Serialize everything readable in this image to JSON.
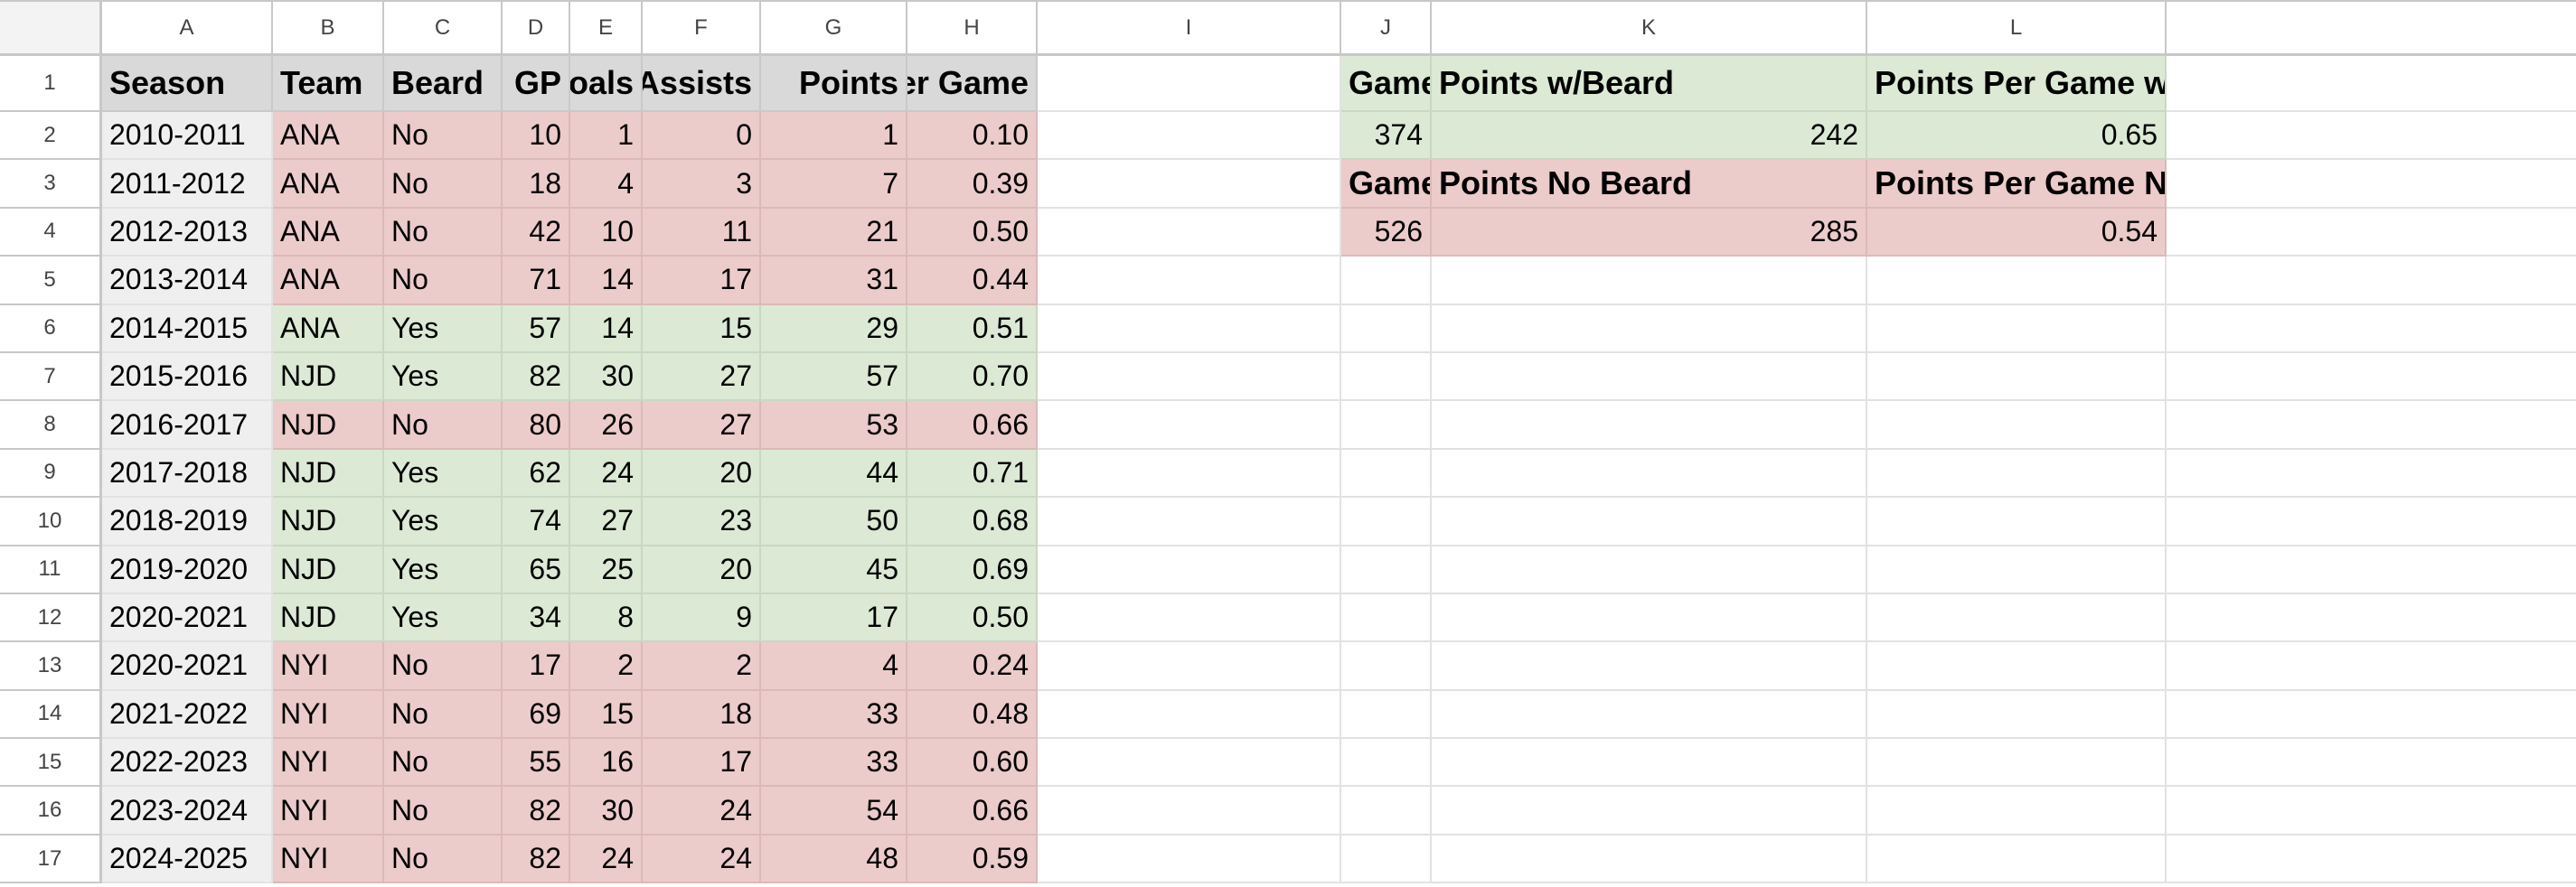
{
  "columns": [
    "A",
    "B",
    "C",
    "D",
    "E",
    "F",
    "G",
    "H",
    "I",
    "J",
    "K",
    "L"
  ],
  "headers": [
    "Season",
    "Team",
    "Beard",
    "GP",
    "Goals",
    "Assists",
    "Points",
    "Points per Game"
  ],
  "rows": [
    [
      "2010-2011",
      "ANA",
      "No",
      "10",
      "1",
      "0",
      "1",
      "0.10"
    ],
    [
      "2011-2012",
      "ANA",
      "No",
      "18",
      "4",
      "3",
      "7",
      "0.39"
    ],
    [
      "2012-2013",
      "ANA",
      "No",
      "42",
      "10",
      "11",
      "21",
      "0.50"
    ],
    [
      "2013-2014",
      "ANA",
      "No",
      "71",
      "14",
      "17",
      "31",
      "0.44"
    ],
    [
      "2014-2015",
      "ANA",
      "Yes",
      "57",
      "14",
      "15",
      "29",
      "0.51"
    ],
    [
      "2015-2016",
      "NJD",
      "Yes",
      "82",
      "30",
      "27",
      "57",
      "0.70"
    ],
    [
      "2016-2017",
      "NJD",
      "No",
      "80",
      "26",
      "27",
      "53",
      "0.66"
    ],
    [
      "2017-2018",
      "NJD",
      "Yes",
      "62",
      "24",
      "20",
      "44",
      "0.71"
    ],
    [
      "2018-2019",
      "NJD",
      "Yes",
      "74",
      "27",
      "23",
      "50",
      "0.68"
    ],
    [
      "2019-2020",
      "NJD",
      "Yes",
      "65",
      "25",
      "20",
      "45",
      "0.69"
    ],
    [
      "2020-2021",
      "NJD",
      "Yes",
      "34",
      "8",
      "9",
      "17",
      "0.50"
    ],
    [
      "2020-2021",
      "NYI",
      "No",
      "17",
      "2",
      "2",
      "4",
      "0.24"
    ],
    [
      "2021-2022",
      "NYI",
      "No",
      "69",
      "15",
      "18",
      "33",
      "0.48"
    ],
    [
      "2022-2023",
      "NYI",
      "No",
      "55",
      "16",
      "17",
      "33",
      "0.60"
    ],
    [
      "2023-2024",
      "NYI",
      "No",
      "82",
      "30",
      "24",
      "54",
      "0.66"
    ],
    [
      "2024-2025",
      "NYI",
      "No",
      "82",
      "24",
      "24",
      "48",
      "0.59"
    ]
  ],
  "summary": {
    "beard_labels": [
      "Games Played w/Beard",
      "Points w/Beard",
      "Points Per Game w/Beard"
    ],
    "beard_values": [
      "374",
      "242",
      "0.65"
    ],
    "nobeard_labels": [
      "Games Played No Beard",
      "Points No Beard",
      "Points Per Game No Beard"
    ],
    "nobeard_values": [
      "526",
      "285",
      "0.54"
    ]
  },
  "colors": {
    "beard": "#dce9d5",
    "no_beard": "#eccbcb",
    "header": "#d9d9d9"
  }
}
